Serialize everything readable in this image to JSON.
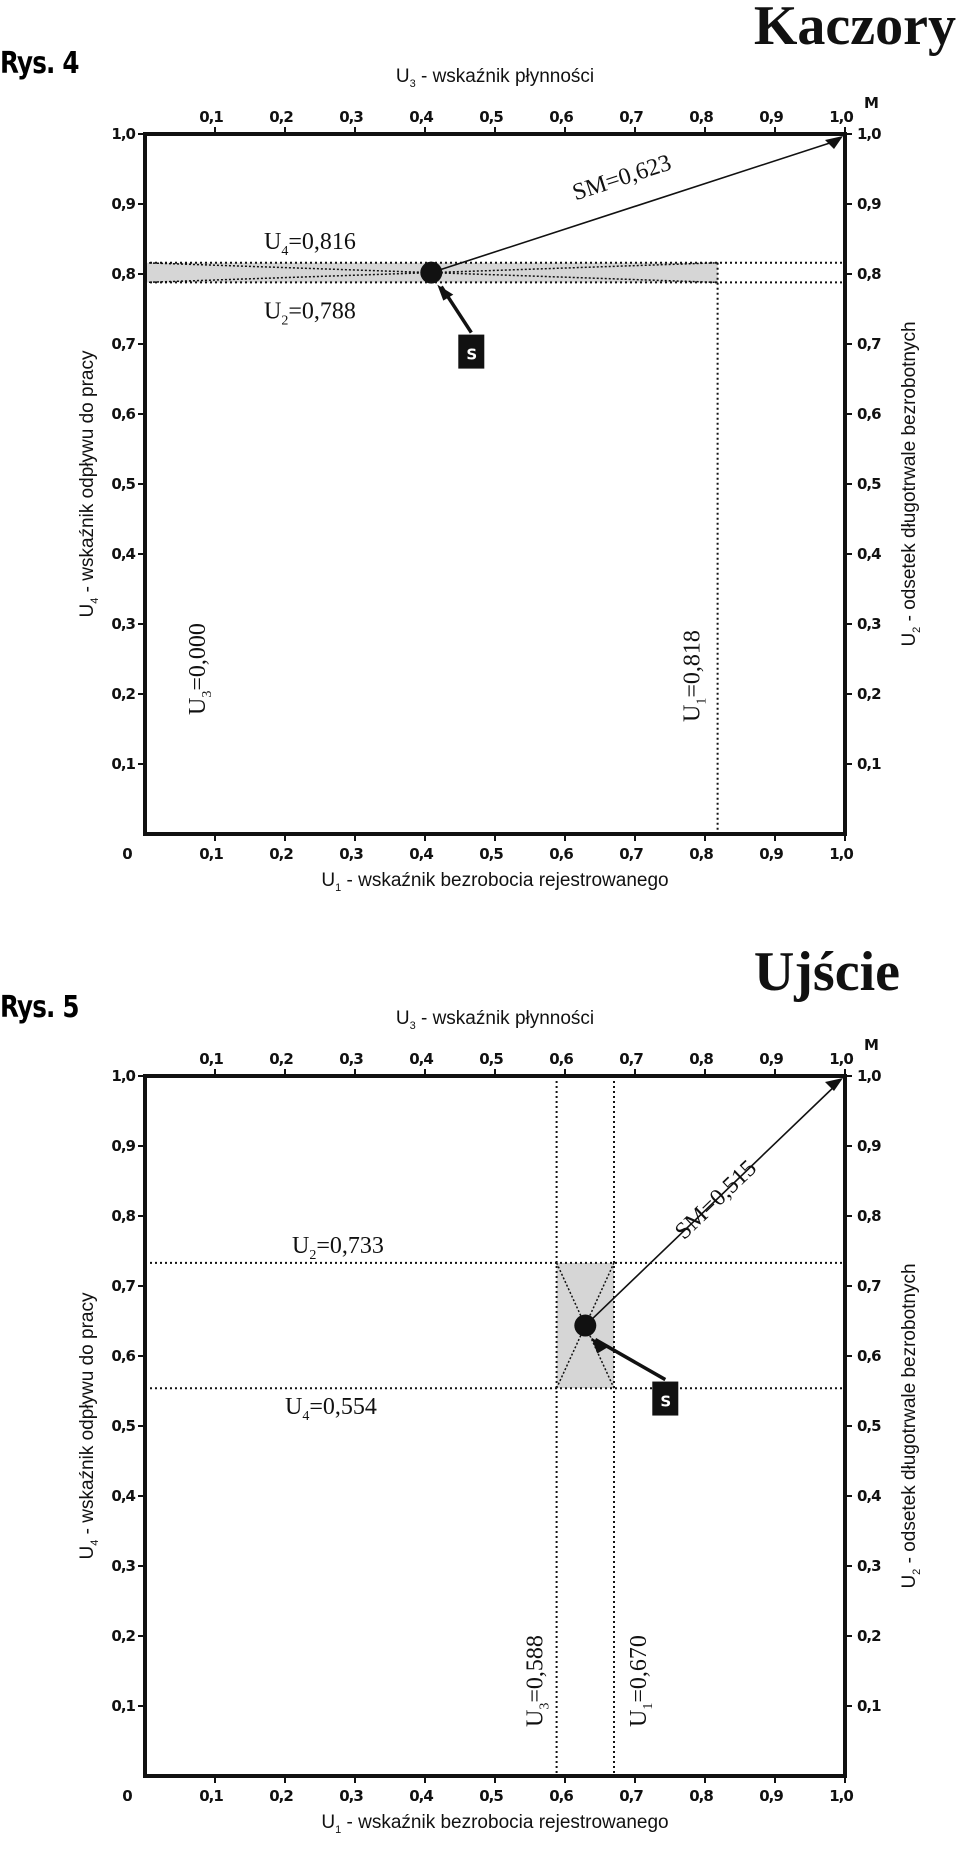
{
  "figures": [
    {
      "label": "Rys. 4",
      "place": "Kaczory",
      "top_axis": "U3 - wskaźnik płynności",
      "bottom_axis": "U1 - wskaźnik bezrobocia rejestrowanego",
      "left_axis": "U4 - wskaźnik odpływu do pracy",
      "right_axis": "U2 - odsetek długotrwale bezrobotnych",
      "corner_top": "M",
      "origin": "0",
      "point_label": "S",
      "ticks": [
        "0,1",
        "0,2",
        "0,3",
        "0,4",
        "0,5",
        "0,6",
        "0,7",
        "0,8",
        "0,9",
        "1,0"
      ],
      "values": {
        "U1": 0.818,
        "U2": 0.788,
        "U3": 0.0,
        "U4": 0.816,
        "SM": 0.623
      },
      "labels": {
        "U1": "U1=0,818",
        "U2": "U2=0,788",
        "U3": "U3=0,000",
        "U4": "U4=0,816",
        "SM": "SM=0,623"
      }
    },
    {
      "label": "Rys. 5",
      "place": "Ujście",
      "top_axis": "U3 - wskaźnik płynności",
      "bottom_axis": "U1 - wskaźnik bezrobocia rejestrowanego",
      "left_axis": "U4 - wskaźnik odpływu do pracy",
      "right_axis": "U2 - odsetek długotrwale bezrobotnych",
      "corner_top": "M",
      "origin": "0",
      "point_label": "S",
      "ticks": [
        "0,1",
        "0,2",
        "0,3",
        "0,4",
        "0,5",
        "0,6",
        "0,7",
        "0,8",
        "0,9",
        "1,0"
      ],
      "values": {
        "U1": 0.67,
        "U2": 0.733,
        "U3": 0.588,
        "U4": 0.554,
        "SM": 0.515
      },
      "labels": {
        "U1": "U1=0,670",
        "U2": "U2=0,733",
        "U3": "U3=0,588",
        "U4": "U4=0,554",
        "SM": "SM=0,515"
      }
    }
  ],
  "colors": {
    "frame": "#111111",
    "shade": "#d6d6d6",
    "text": "#111111",
    "point_box": "#111111"
  }
}
